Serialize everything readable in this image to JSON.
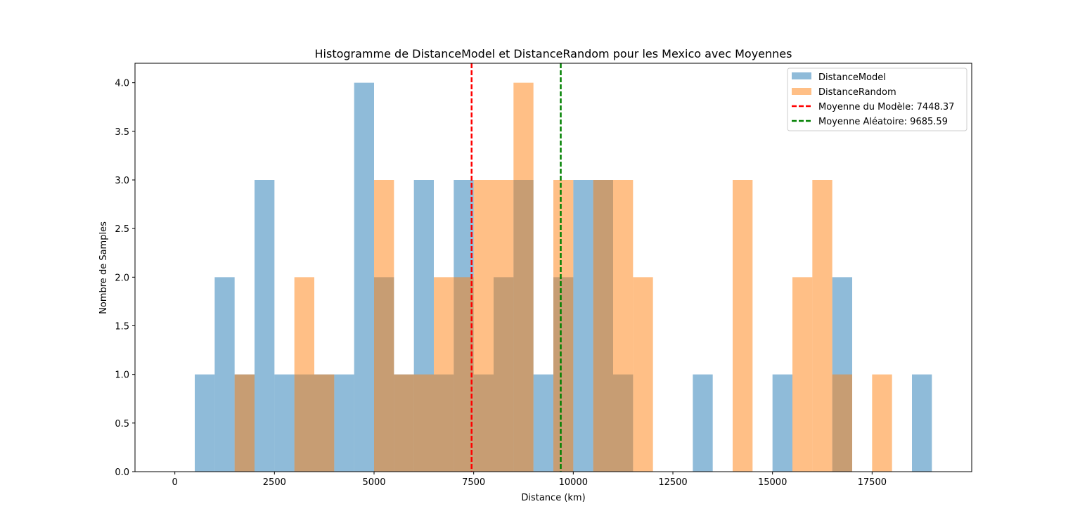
{
  "chart_data": {
    "type": "bar",
    "title": "Histogramme de DistanceModel et DistanceRandom pour les Mexico avec Moyennes",
    "xlabel": "Distance (km)",
    "ylabel": "Nombre de Samples",
    "xlim": [
      -1000,
      20000
    ],
    "ylim": [
      0,
      4.2
    ],
    "bin_width": 500,
    "x_ticks": [
      0,
      2500,
      5000,
      7500,
      10000,
      12500,
      15000,
      17500
    ],
    "x_tick_labels": [
      "0",
      "2500",
      "5000",
      "7500",
      "10000",
      "12500",
      "15000",
      "17500"
    ],
    "y_ticks": [
      0,
      0.5,
      1,
      1.5,
      2,
      2.5,
      3,
      3.5,
      4
    ],
    "y_tick_labels": [
      "0.0",
      "0.5",
      "1.0",
      "1.5",
      "2.0",
      "2.5",
      "3.0",
      "3.5",
      "4.0"
    ],
    "series": [
      {
        "name": "DistanceModel",
        "color": "#1f77b4",
        "opacity": 0.5,
        "bin_starts": [
          500,
          1000,
          1500,
          2000,
          2500,
          3000,
          3500,
          4000,
          4500,
          5000,
          5500,
          6000,
          6500,
          7000,
          7500,
          8000,
          8500,
          9000,
          9500,
          10000,
          10500,
          11000,
          13000,
          15000,
          16500,
          18500
        ],
        "values": [
          1,
          2,
          1,
          3,
          1,
          1,
          1,
          1,
          4,
          2,
          1,
          3,
          1,
          3,
          1,
          2,
          3,
          1,
          2,
          3,
          3,
          1,
          1,
          1,
          2,
          1
        ]
      },
      {
        "name": "DistanceRandom",
        "color": "#ff7f0e",
        "opacity": 0.5,
        "bin_starts": [
          1500,
          3000,
          3500,
          5000,
          5500,
          6000,
          6500,
          7000,
          7500,
          8000,
          8500,
          9500,
          10500,
          11000,
          11500,
          14000,
          15500,
          16000,
          16500,
          17500
        ],
        "values": [
          1,
          2,
          1,
          3,
          1,
          1,
          2,
          2,
          3,
          3,
          4,
          3,
          3,
          3,
          2,
          3,
          2,
          3,
          1,
          1
        ]
      }
    ],
    "mean_lines": [
      {
        "label": "Moyenne du Modèle: 7448.37",
        "value": 7448.37,
        "color": "#ff0000"
      },
      {
        "label": "Moyenne Aléatoire: 9685.59",
        "value": 9685.59,
        "color": "#008000"
      }
    ],
    "legend_position": "upper right"
  }
}
